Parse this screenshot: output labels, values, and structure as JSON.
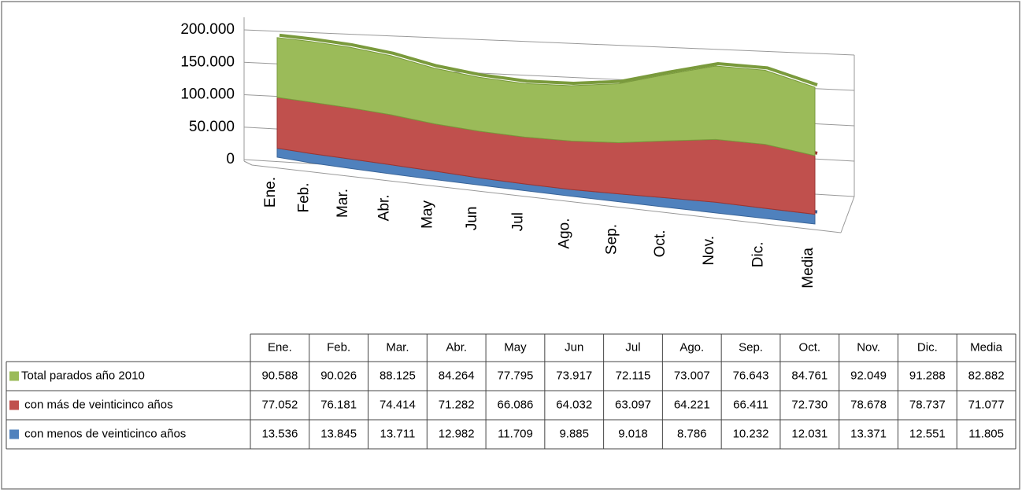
{
  "chart_data": {
    "type": "area",
    "stacked": true,
    "view": "3d",
    "categories": [
      "Ene.",
      "Feb.",
      "Mar.",
      "Abr.",
      "May",
      "Jun",
      "Jul",
      "Ago.",
      "Sep.",
      "Oct.",
      "Nov.",
      "Dic.",
      "Media"
    ],
    "series": [
      {
        "name": "Total parados año 2010",
        "color": "#9bbb59",
        "values": [
          90588,
          90026,
          88125,
          84264,
          77795,
          73917,
          72115,
          73007,
          76643,
          84761,
          92049,
          91288,
          82882
        ],
        "value_labels": [
          "90.588",
          "90.026",
          "88.125",
          "84.264",
          "77.795",
          "73.917",
          "72.115",
          "73.007",
          "76.643",
          "84.761",
          "92.049",
          "91.288",
          "82.882"
        ]
      },
      {
        "name": " con más de veinticinco años",
        "color": "#c0504d",
        "values": [
          77052,
          76181,
          74414,
          71282,
          66086,
          64032,
          63097,
          64221,
          66411,
          72730,
          78678,
          78737,
          71077
        ],
        "value_labels": [
          "77.052",
          "76.181",
          "74.414",
          "71.282",
          "66.086",
          "64.032",
          "63.097",
          "64.221",
          "66.411",
          "72.730",
          "78.678",
          "78.737",
          "71.077"
        ]
      },
      {
        "name": " con menos de veinticinco años",
        "color": "#4f81bd",
        "values": [
          13536,
          13845,
          13711,
          12982,
          11709,
          9885,
          9018,
          8786,
          10232,
          12031,
          13371,
          12551,
          11805
        ],
        "value_labels": [
          "13.536",
          "13.845",
          "13.711",
          "12.982",
          "11.709",
          "9.885",
          "9.018",
          "8.786",
          "10.232",
          "12.031",
          "13.371",
          "12.551",
          "11.805"
        ]
      }
    ],
    "ylim": [
      0,
      200000
    ],
    "yticks": [
      0,
      {
        "value": 50000,
        "label": "50.000"
      },
      {
        "value": 100000,
        "label": "100.000"
      },
      {
        "value": 150000,
        "label": "150.000"
      },
      {
        "value": 200000,
        "label": "200.000"
      }
    ],
    "grid": true,
    "data_table": true
  }
}
